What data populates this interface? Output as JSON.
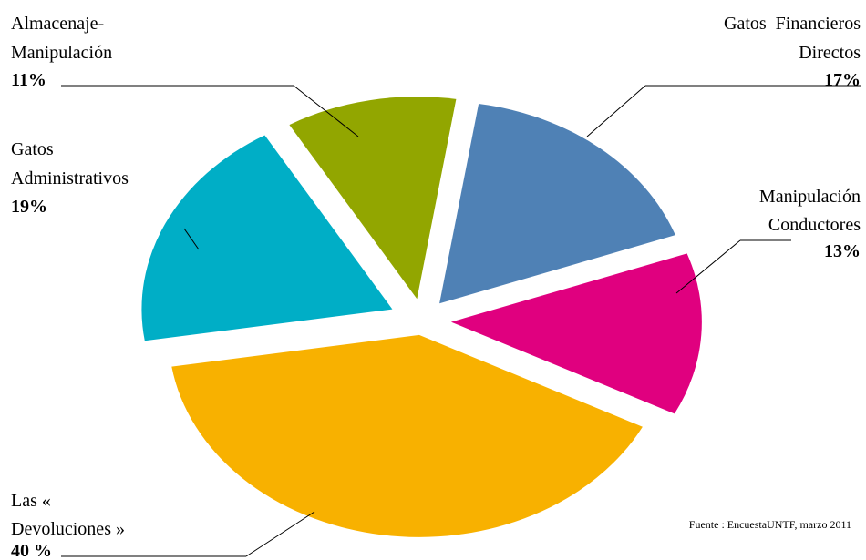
{
  "chart_data": {
    "type": "pie",
    "title": "",
    "slices": [
      {
        "label_lines": [
          "Gatos  Financieros",
          "Directos"
        ],
        "pct_text": "17%",
        "value": 17,
        "color": "#4f81b5"
      },
      {
        "label_lines": [
          "Manipulación",
          "Conductores"
        ],
        "pct_text": "13%",
        "value": 13,
        "color": "#e0007f"
      },
      {
        "label_lines": [
          "Las «",
          "Devoluciones »"
        ],
        "pct_text": "40 %",
        "value": 40,
        "color": "#f8b100"
      },
      {
        "label_lines": [
          "Gatos",
          "Administrativos"
        ],
        "pct_text": "19%",
        "value": 19,
        "color": "#00aec6"
      },
      {
        "label_lines": [
          "Almacenaje-",
          "Manipulación"
        ],
        "pct_text": "11%",
        "value": 11,
        "color": "#92a600"
      }
    ],
    "source": "Fuente : EncuestaUNTF, marzo 2011"
  }
}
